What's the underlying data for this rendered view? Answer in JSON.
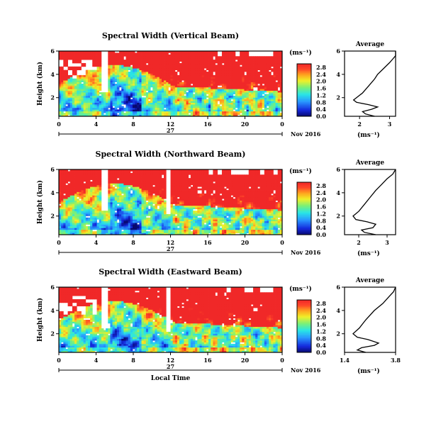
{
  "chart_data": [
    {
      "type": "heatmap",
      "title": "Spectral Width (Vertical Beam)",
      "ylabel": "Height (km)",
      "yticks": [
        "2",
        "4",
        "6"
      ],
      "ylim": [
        0.4,
        6
      ],
      "xticks": [
        "0",
        "4",
        "8",
        "12",
        "16",
        "20",
        "0"
      ],
      "xlim": [
        0,
        24
      ],
      "day_label": "27",
      "date_label": "Nov 2016",
      "colorbar": {
        "unit": "(ms⁻¹)",
        "ticks": [
          "0.0",
          "0.4",
          "0.8",
          "1.2",
          "1.6",
          "2.0",
          "2.4",
          "2.8"
        ],
        "range": [
          0,
          3.0
        ]
      },
      "profile": {
        "title": "Average",
        "xlabel": "(ms⁻¹)",
        "xticks": [
          "2",
          "3"
        ],
        "xlim": [
          1.5,
          3.2
        ],
        "yticks": [
          "2",
          "4",
          "6"
        ],
        "points": [
          [
            2.5,
            0.4
          ],
          [
            2.2,
            0.6
          ],
          [
            2.1,
            0.8
          ],
          [
            2.4,
            1.0
          ],
          [
            2.6,
            1.2
          ],
          [
            2.3,
            1.4
          ],
          [
            1.9,
            1.6
          ],
          [
            1.8,
            1.8
          ],
          [
            1.9,
            2.0
          ],
          [
            2.1,
            2.4
          ],
          [
            2.3,
            3.0
          ],
          [
            2.5,
            3.6
          ],
          [
            2.6,
            4.0
          ],
          [
            2.8,
            4.5
          ],
          [
            3.0,
            5.0
          ],
          [
            3.1,
            5.3
          ],
          [
            3.2,
            5.6
          ],
          [
            3.2,
            6.0
          ]
        ]
      }
    },
    {
      "type": "heatmap",
      "title": "Spectral Width (Northward Beam)",
      "ylabel": "Height (km)",
      "yticks": [
        "2",
        "4",
        "6"
      ],
      "ylim": [
        0.4,
        6
      ],
      "xticks": [
        "0",
        "4",
        "8",
        "12",
        "16",
        "20",
        "0"
      ],
      "xlim": [
        0,
        24
      ],
      "day_label": "27",
      "date_label": "Nov 2016",
      "colorbar": {
        "unit": "(ms⁻¹)",
        "ticks": [
          "0.0",
          "0.4",
          "0.8",
          "1.2",
          "1.6",
          "2.0",
          "2.4",
          "2.8"
        ],
        "range": [
          0,
          3.0
        ]
      },
      "profile": {
        "title": "Average",
        "xlabel": "(ms⁻¹)",
        "xticks": [
          "2",
          "3"
        ],
        "xlim": [
          1.5,
          3.3
        ],
        "yticks": [
          "2",
          "4",
          "6"
        ],
        "points": [
          [
            2.6,
            0.4
          ],
          [
            2.2,
            0.6
          ],
          [
            2.1,
            0.8
          ],
          [
            2.5,
            1.0
          ],
          [
            2.6,
            1.3
          ],
          [
            2.3,
            1.5
          ],
          [
            1.9,
            1.7
          ],
          [
            1.8,
            2.0
          ],
          [
            2.0,
            2.4
          ],
          [
            2.2,
            3.0
          ],
          [
            2.4,
            3.6
          ],
          [
            2.6,
            4.2
          ],
          [
            2.8,
            4.7
          ],
          [
            3.0,
            5.2
          ],
          [
            3.2,
            5.6
          ],
          [
            3.3,
            6.0
          ]
        ]
      }
    },
    {
      "type": "heatmap",
      "title": "Spectral Width (Eastward Beam)",
      "ylabel": "Height (km)",
      "yticks": [
        "2",
        "4",
        "6"
      ],
      "ylim": [
        0.4,
        6
      ],
      "xticks": [
        "0",
        "4",
        "8",
        "12",
        "16",
        "20",
        "0"
      ],
      "xlim": [
        0,
        24
      ],
      "xlabel": "Local Time",
      "day_label": "27",
      "date_label": "Nov 2016",
      "colorbar": {
        "unit": "(ms⁻¹)",
        "ticks": [
          "0.0",
          "0.4",
          "0.8",
          "1.2",
          "1.6",
          "2.0",
          "2.4",
          "2.8"
        ],
        "range": [
          0,
          3.0
        ]
      },
      "profile": {
        "title": "Average",
        "xlabel": "(ms⁻¹)",
        "xticks": [
          "1.4",
          "3.8"
        ],
        "xlim": [
          1.4,
          3.8
        ],
        "yticks": [
          "2",
          "4",
          "6"
        ],
        "points": [
          [
            2.4,
            0.4
          ],
          [
            2.0,
            0.6
          ],
          [
            2.2,
            0.8
          ],
          [
            2.8,
            1.0
          ],
          [
            3.0,
            1.2
          ],
          [
            2.5,
            1.5
          ],
          [
            2.0,
            1.7
          ],
          [
            1.8,
            2.0
          ],
          [
            2.1,
            2.5
          ],
          [
            2.4,
            3.2
          ],
          [
            2.8,
            4.0
          ],
          [
            3.2,
            4.6
          ],
          [
            3.5,
            5.2
          ],
          [
            3.7,
            5.6
          ],
          [
            3.8,
            6.0
          ]
        ]
      }
    }
  ]
}
